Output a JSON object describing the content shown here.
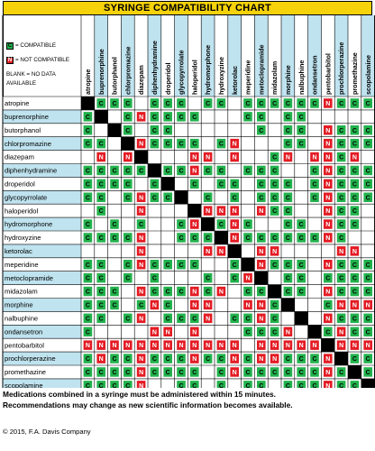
{
  "title": "SYRINGE COMPATIBILITY CHART",
  "legend": {
    "compatible": {
      "mark": "C",
      "label": "= COMPATIBLE"
    },
    "incompatible": {
      "mark": "N",
      "label": "= NOT COMPATIBLE"
    },
    "blank_line1": "BLANK = NO DATA",
    "blank_line2": "AVAILABLE"
  },
  "colors": {
    "title_bg": "#f5d20a",
    "row_label_bg_alt": "#bfe3ef",
    "compatible": "#22b24c",
    "incompatible": "#e31b23",
    "no_data": "#ffffff",
    "self": "#000000",
    "border": "#000000"
  },
  "drugs": [
    "atropine",
    "buprenorphine",
    "butorphanol",
    "chlorpromazine",
    "diazepam",
    "diphenhydramine",
    "droperidol",
    "glycopyrrolate",
    "haloperidol",
    "hydromorphone",
    "hydroxyzine",
    "ketorolac",
    "meperidine",
    "metoclopramide",
    "midazolam",
    "morphine",
    "nalbuphine",
    "ondansetron",
    "pentobarbitol",
    "prochlorperazine",
    "promethazine",
    "scopolamine"
  ],
  "matrix": [
    "XCCC.CCC.CC.CCCCCCNCCC",
    "CX.CNCCCC...CC.CC.....",
    "C.XC.CC......C.CC.NCCC",
    "CC.XNCCCC.CN...CC.NCCC",
    ".N.NX...NN.N..CN.NNCN.",
    "CCCCCXCCNCC.CCC..CNCCC",
    "CCCC.CX.C.CC.CCC.CNCCC",
    "CC.CNCCX.C.C.CCC.CNCCC",
    ".C..N...XNNN.NCC..NCC.",
    "C.C.C..CNXCNC..CC.NCC.",
    "CCCCN..CCCXNCCCCCCNC..",
    "....N....NNX.NN....NN.",
    "CC.CNCCCC..CXNCCC.NCCC",
    "CC.C.C...C.CNX.CC.CCCC",
    "CCC.NCCCNCN.CCXCC.NCCC",
    "CCC.CNC.NN..NNCX..CNNN",
    "CC.CN.CCCN.CCNC.X.NCCC",
    "C....NN.N...CCCN.XCNCC",
    "NNNNNNNNNNNN.NNNNNXNNN",
    "CNCCNCCCNCCNCNNCCCNXCC",
    "CCCCNCCCC.CNCCCCCCNCXC",
    "CCCCN..CC.C.CC.CCCNCCX"
  ],
  "footer_line1": "Medications combined in a syringe must be administered within 15 minutes.",
  "footer_line2": "Recommendations may change as new scientific information becomes available.",
  "copyright": "© 2015, F.A. Davis Company"
}
